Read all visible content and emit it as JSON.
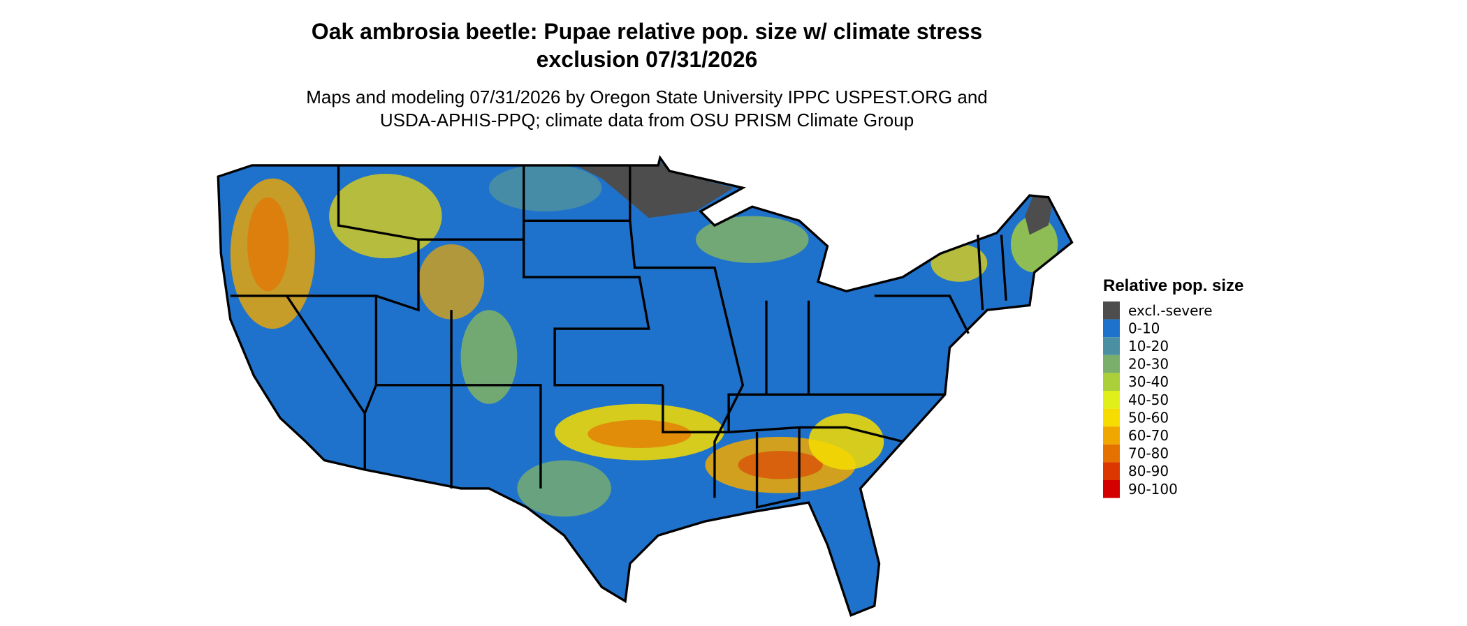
{
  "title": [
    "Oak ambrosia beetle: Pupae relative pop. size w/ climate stress",
    "exclusion 07/31/2026"
  ],
  "subtitle": [
    "Maps and modeling 07/31/2026 by Oregon State University IPPC USPEST.ORG and",
    "USDA-APHIS-PPQ; climate data from OSU PRISM Climate Group"
  ],
  "legend": {
    "title": "Relative pop. size",
    "items": [
      {
        "label": "excl.-severe",
        "color": "#4d4d4d"
      },
      {
        "label": "0-10",
        "color": "#1f72cb"
      },
      {
        "label": "10-20",
        "color": "#4b8fa2"
      },
      {
        "label": "20-30",
        "color": "#7aae6b"
      },
      {
        "label": "30-40",
        "color": "#aacf38"
      },
      {
        "label": "40-50",
        "color": "#e0ef1a"
      },
      {
        "label": "50-60",
        "color": "#f6dc00"
      },
      {
        "label": "60-70",
        "color": "#f0a800"
      },
      {
        "label": "70-80",
        "color": "#e57200"
      },
      {
        "label": "80-90",
        "color": "#dc3700"
      },
      {
        "label": "90-100",
        "color": "#d40000"
      }
    ]
  }
}
